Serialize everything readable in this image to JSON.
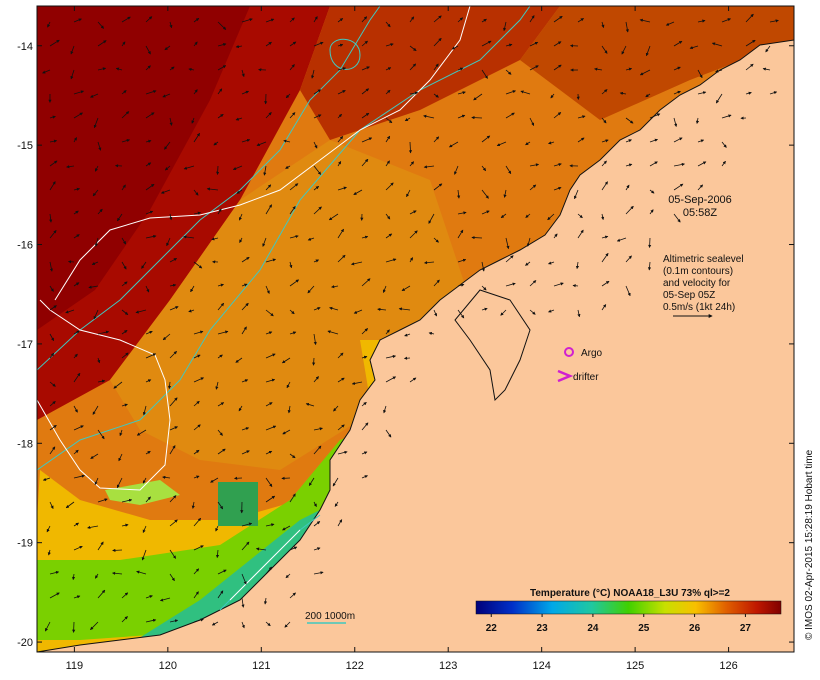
{
  "map": {
    "type": "sea-surface-temperature",
    "lon_range": [
      118.6,
      126.7
    ],
    "lat_range": [
      -20.1,
      -13.6
    ],
    "lon_ticks": [
      "119",
      "120",
      "121",
      "122",
      "123",
      "124",
      "125",
      "126"
    ],
    "lat_ticks": [
      "-14",
      "-15",
      "-16",
      "-17",
      "-18",
      "-19",
      "-20"
    ],
    "date_text": "05-Sep-2006",
    "time_text": "05:58Z",
    "info_lines": [
      "Altimetric sealevel",
      "(0.1m contours)",
      "and velocity for",
      "05-Sep 05Z",
      "0.5m/s (1kt 24h)"
    ],
    "argo_label": "Argo",
    "drifter_label": "drifter",
    "depth_legend": "200  1000m",
    "credit": "© IMOS 02-Apr-2015 15:28:19 Hobart time"
  },
  "colorbar": {
    "title": "Temperature (°C) NOAA18_L3U 73% ql>=2",
    "ticks": [
      "22",
      "23",
      "24",
      "25",
      "26",
      "27"
    ],
    "range": [
      21.7,
      27.7
    ]
  },
  "colors": {
    "land": "#fbc79b",
    "coast": "#111111",
    "isobath": "#40c8c0",
    "sealevel_contour": "#ffffff",
    "argo": "#d020d0",
    "drifter": "#d020d0"
  }
}
